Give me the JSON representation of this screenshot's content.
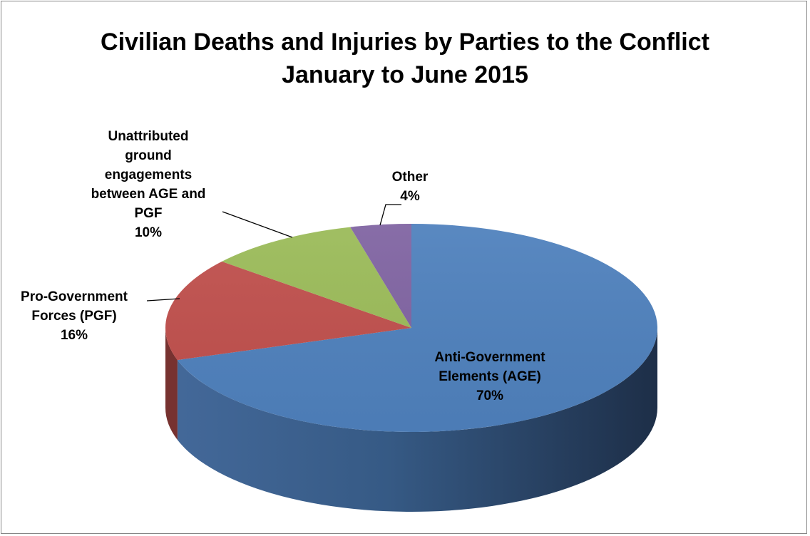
{
  "chart_data": {
    "type": "pie",
    "title": "Civilian Deaths and Injuries by Parties to the Conflict",
    "subtitle": "January to June 2015",
    "unit": "%",
    "slices": [
      {
        "label_lines": [
          "Anti-Government",
          "Elements (AGE)"
        ],
        "value": 70,
        "value_label": "70%",
        "color": "#4F81BD"
      },
      {
        "label_lines": [
          "Pro-Government",
          "Forces (PGF)"
        ],
        "value": 16,
        "value_label": "16%",
        "color": "#C0504D"
      },
      {
        "label_lines": [
          "Unattributed",
          "ground",
          "engagements",
          "between AGE and",
          "PGF"
        ],
        "value": 10,
        "value_label": "10%",
        "color": "#9BBB59"
      },
      {
        "label_lines": [
          "Other"
        ],
        "value": 4,
        "value_label": "4%",
        "color": "#8064A2"
      }
    ],
    "legend": "none",
    "style": "3d"
  }
}
